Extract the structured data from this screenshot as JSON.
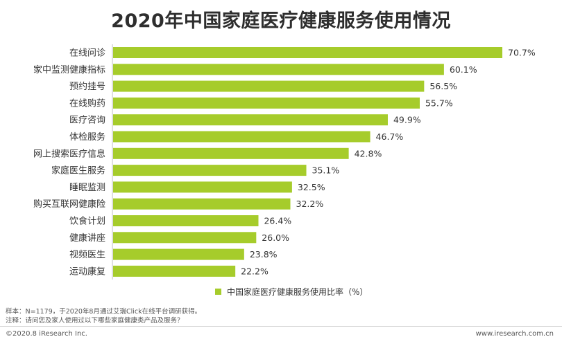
{
  "title": "2020年中国家庭医疗健康服务使用情况",
  "colors": {
    "bar": "#a6cc2b",
    "text": "#333333"
  },
  "chart_data": {
    "type": "bar",
    "orientation": "horizontal",
    "title": "2020年中国家庭医疗健康服务使用情况",
    "categories": [
      "在线问诊",
      "家中监测健康指标",
      "预约挂号",
      "在线购药",
      "医疗咨询",
      "体检服务",
      "网上搜索医疗信息",
      "家庭医生服务",
      "睡眠监测",
      "购买互联网健康险",
      "饮食计划",
      "健康讲座",
      "视频医生",
      "运动康复"
    ],
    "series": [
      {
        "name": "中国家庭医疗健康服务使用比率（%）",
        "values": [
          70.7,
          60.1,
          56.5,
          55.7,
          49.9,
          46.7,
          42.8,
          35.1,
          32.5,
          32.2,
          26.4,
          26.0,
          23.8,
          22.2
        ]
      }
    ],
    "value_labels": [
      "70.7%",
      "60.1%",
      "56.5%",
      "55.7%",
      "49.9%",
      "46.7%",
      "42.8%",
      "35.1%",
      "32.5%",
      "32.2%",
      "26.4%",
      "26.0%",
      "23.8%",
      "22.2%"
    ],
    "xlim": [
      0,
      70.7
    ],
    "grid": false,
    "legend_position": "bottom"
  },
  "legend": {
    "label": "中国家庭医疗健康服务使用比率（%）"
  },
  "notes": {
    "sample": "样本：N=1179，于2020年8月通过艾瑞Click在线平台调研获得。",
    "remark": "注释：请问您及家人使用过以下哪些家庭健康类产品及服务？"
  },
  "footer": {
    "copyright": "©2020.8 iResearch Inc.",
    "website": "www.iresearch.com.cn"
  }
}
